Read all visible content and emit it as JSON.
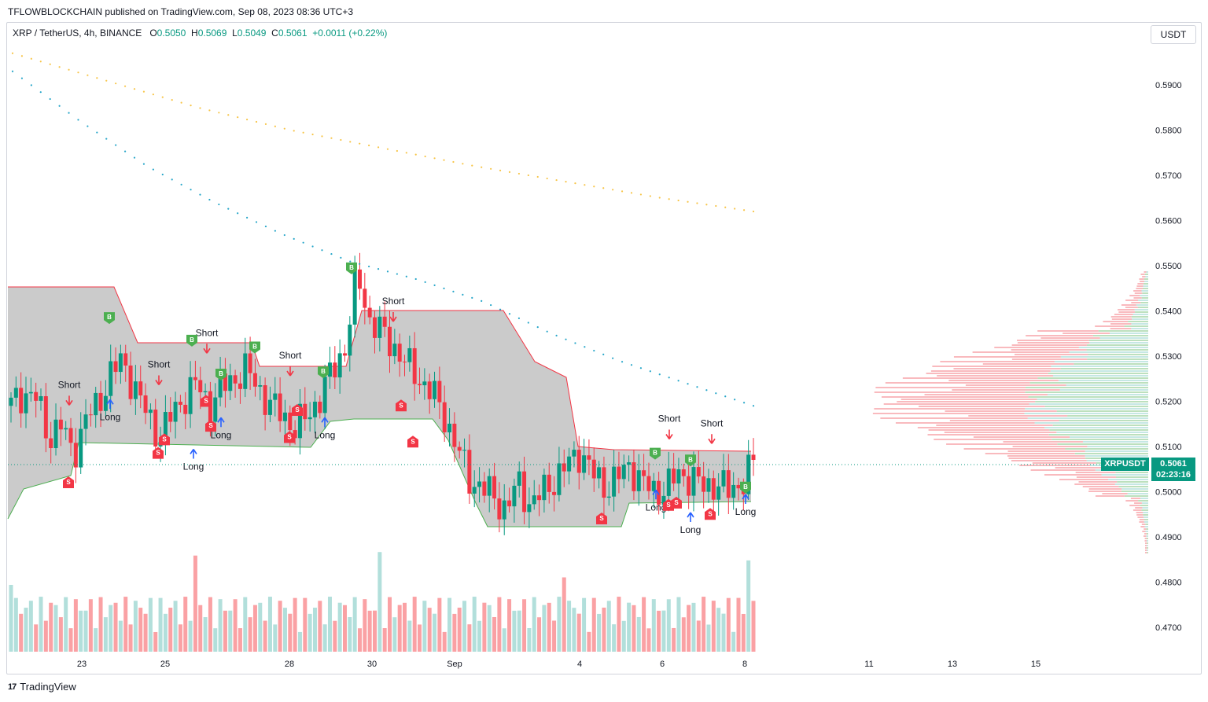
{
  "header": {
    "published": "TFLOWBLOCKCHAIN published on TradingView.com, Sep 08, 2023 08:36 UTC+3"
  },
  "legend": {
    "symbol": "XRP / TetherUS, 4h, BINANCE",
    "o_label": "O",
    "o": "0.5050",
    "h_label": "H",
    "h": "0.5069",
    "l_label": "L",
    "l": "0.5049",
    "c_label": "C",
    "c": "0.5061",
    "change": "+0.0011 (+0.22%)"
  },
  "currency": "USDT",
  "last_price": {
    "symbol": "XRPUSDT",
    "price": "0.5061",
    "countdown": "02:23:16"
  },
  "footer": {
    "brand": "TradingView"
  },
  "colors": {
    "up": "#089981",
    "down": "#f23645",
    "volume_up": "#b2dfdb",
    "volume_down": "#faa1a4",
    "box_fill": "#c8c8c8",
    "ma_fast": "#26a6c9",
    "ma_slow": "#f7c548"
  },
  "chart_data": {
    "type": "candlestick",
    "timeframe": "4h",
    "y_axis": {
      "ticks": [
        "0.5900",
        "0.5800",
        "0.5700",
        "0.5600",
        "0.5500",
        "0.5400",
        "0.5300",
        "0.5200",
        "0.5100",
        "0.5000",
        "0.4900",
        "0.4800",
        "0.4700"
      ],
      "range": [
        0.4655,
        0.6015
      ]
    },
    "x_axis": {
      "ticks": [
        "23",
        "25",
        "28",
        "30",
        "Sep",
        "4",
        "6",
        "8",
        "11",
        "13",
        "15"
      ]
    },
    "price_path": [
      0.519,
      0.522,
      0.521,
      0.512,
      0.515,
      0.508,
      0.516,
      0.519,
      0.526,
      0.529,
      0.523,
      0.517,
      0.512,
      0.517,
      0.521,
      0.524,
      0.519,
      0.523,
      0.525,
      0.527,
      0.523,
      0.519,
      0.517,
      0.514,
      0.517,
      0.521,
      0.527,
      0.532,
      0.548,
      0.538,
      0.535,
      0.532,
      0.528,
      0.525,
      0.522,
      0.517,
      0.51,
      0.503,
      0.501,
      0.499,
      0.496,
      0.502,
      0.497,
      0.5,
      0.503,
      0.506,
      0.509,
      0.504,
      0.501,
      0.503,
      0.506,
      0.502,
      0.5,
      0.501,
      0.504,
      0.503,
      0.501,
      0.502,
      0.5,
      0.502,
      0.5061
    ],
    "ma_fast": [
      0.593,
      0.582,
      0.572,
      0.564,
      0.557,
      0.551,
      0.547,
      0.542,
      0.535,
      0.529,
      0.524,
      0.519
    ],
    "ma_slow": [
      0.597,
      0.591,
      0.585,
      0.58,
      0.576,
      0.572,
      0.5685,
      0.565,
      0.562
    ],
    "signals": [
      {
        "label": "Short",
        "price": 0.5195
      },
      {
        "label": "Long",
        "price": 0.519
      },
      {
        "label": "Short",
        "price": 0.524
      },
      {
        "label": "Long",
        "price": 0.508
      },
      {
        "label": "Short",
        "price": 0.531
      },
      {
        "label": "Long",
        "price": 0.515
      },
      {
        "label": "Short",
        "price": 0.526
      },
      {
        "label": "Long",
        "price": 0.515
      },
      {
        "label": "Short",
        "price": 0.538
      },
      {
        "label": "Short",
        "price": 0.512
      },
      {
        "label": "Long",
        "price": 0.499
      },
      {
        "label": "Long",
        "price": 0.494
      },
      {
        "label": "Short",
        "price": 0.511
      },
      {
        "label": "Long",
        "price": 0.498
      }
    ],
    "markers": [
      {
        "letter": "B",
        "price": 0.5385
      },
      {
        "letter": "B",
        "price": 0.5335
      },
      {
        "letter": "B",
        "price": 0.532
      },
      {
        "letter": "B",
        "price": 0.526
      },
      {
        "letter": "B",
        "price": 0.5265
      },
      {
        "letter": "B",
        "price": 0.5495
      },
      {
        "letter": "B",
        "price": 0.5085
      },
      {
        "letter": "B",
        "price": 0.507
      },
      {
        "letter": "B",
        "price": 0.501
      },
      {
        "letter": "S",
        "price": 0.502
      },
      {
        "letter": "S",
        "price": 0.5085
      },
      {
        "letter": "S",
        "price": 0.5115
      },
      {
        "letter": "S",
        "price": 0.52
      },
      {
        "letter": "S",
        "price": 0.5145
      },
      {
        "letter": "S",
        "price": 0.512
      },
      {
        "letter": "S",
        "price": 0.518
      },
      {
        "letter": "S",
        "price": 0.519
      },
      {
        "letter": "S",
        "price": 0.511
      },
      {
        "letter": "S",
        "price": 0.494
      },
      {
        "letter": "S",
        "price": 0.497
      },
      {
        "letter": "S",
        "price": 0.4975
      },
      {
        "letter": "S",
        "price": 0.495
      }
    ]
  }
}
